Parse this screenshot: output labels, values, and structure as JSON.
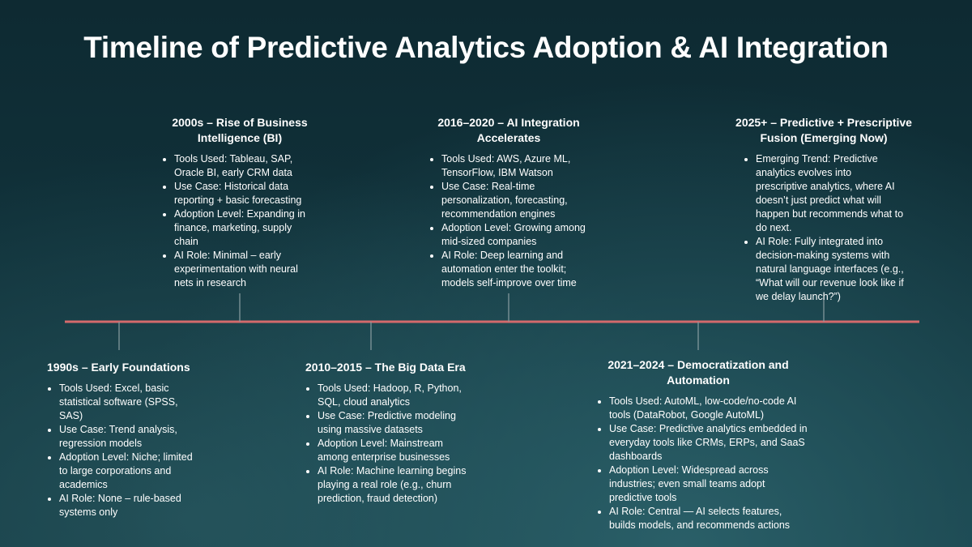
{
  "title": "Timeline of Predictive Analytics Adoption & AI Integration",
  "milestones": [
    {
      "heading": "1990s – Early Foundations",
      "bullets": [
        "Tools Used: Excel, basic statistical software (SPSS, SAS)",
        "Use Case: Trend analysis, regression models",
        "Adoption Level: Niche; limited to large corporations and academics",
        "AI Role: None – rule-based systems only"
      ]
    },
    {
      "heading": "2000s – Rise of Business Intelligence (BI)",
      "bullets": [
        "Tools Used: Tableau, SAP, Oracle BI, early CRM data",
        "Use Case: Historical data reporting + basic forecasting",
        "Adoption Level: Expanding in finance, marketing, supply chain",
        "AI Role: Minimal – early experimentation with neural nets in research"
      ]
    },
    {
      "heading": "2010–2015 – The Big Data Era",
      "bullets": [
        "Tools Used: Hadoop, R, Python, SQL, cloud analytics",
        "Use Case: Predictive modeling using massive datasets",
        "Adoption Level: Mainstream among enterprise businesses",
        "AI Role: Machine learning begins playing a real role (e.g., churn prediction, fraud detection)"
      ]
    },
    {
      "heading": "2016–2020 – AI Integration Accelerates",
      "bullets": [
        "Tools Used: AWS, Azure ML, TensorFlow, IBM Watson",
        "Use Case: Real-time personalization, forecasting, recommendation engines",
        "Adoption Level: Growing among mid-sized companies",
        "AI Role: Deep learning and automation enter the toolkit; models self-improve over time"
      ]
    },
    {
      "heading": "2021–2024 – Democratization and Automation",
      "bullets": [
        "Tools Used: AutoML, low-code/no-code AI tools (DataRobot, Google AutoML)",
        "Use Case: Predictive analytics embedded in everyday tools like CRMs, ERPs, and SaaS dashboards",
        "Adoption Level: Widespread across industries; even small teams adopt predictive tools",
        "AI Role: Central — AI selects features, builds models, and recommends actions"
      ]
    },
    {
      "heading": "2025+ – Predictive + Prescriptive Fusion (Emerging Now)",
      "bullets": [
        "Emerging Trend: Predictive analytics evolves into prescriptive analytics, where AI doesn’t just predict what will happen but recommends what to do next.",
        "AI Role: Fully integrated into decision-making systems with natural language interfaces (e.g., “What will our revenue look like if we delay launch?”)"
      ]
    }
  ]
}
